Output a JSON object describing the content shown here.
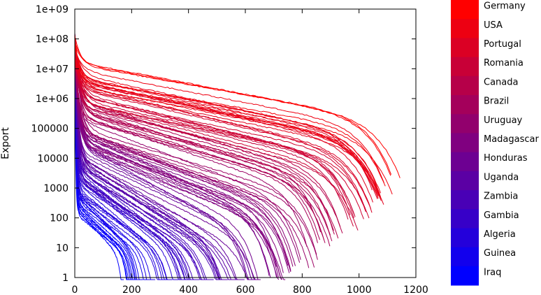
{
  "chart_data": {
    "type": "line",
    "title": "",
    "xlabel": "",
    "ylabel": "Export",
    "xlim": [
      0,
      1200
    ],
    "ylim": [
      1,
      1000000000
    ],
    "y_scale": "log",
    "x_ticks": [
      0,
      200,
      400,
      600,
      800,
      1000,
      1200
    ],
    "x_tick_labels": [
      "0",
      "200",
      "400",
      "600",
      "800",
      "1000",
      "1200"
    ],
    "y_ticks": [
      1,
      10,
      100,
      1000,
      10000,
      100000,
      1000000,
      10000000,
      100000000,
      1000000000
    ],
    "y_tick_labels": [
      "1",
      "10",
      "100",
      "1000",
      "10000",
      "100000",
      "1e+06",
      "1e+07",
      "1e+08",
      "1e+09"
    ],
    "grid": false,
    "colorbar": {
      "labels": [
        "Germany",
        "USA",
        "Portugal",
        "Romania",
        "Canada",
        "Brazil",
        "Uruguay",
        "Madagascar",
        "Honduras",
        "Uganda",
        "Zambia",
        "Gambia",
        "Algeria",
        "Guinea",
        "Iraq"
      ],
      "color_top": "#ff0000",
      "color_bottom": "#0000ff"
    },
    "series_description": "Approximately 120 rank-ordered export curves, one per country, colored from blue (smallest exporters, e.g. Iraq) to red (largest, e.g. Germany); each curve starts near 1e+07–1e+08 at rank 0 and decays, extending to rank ~1120 for the largest exporters."
  }
}
